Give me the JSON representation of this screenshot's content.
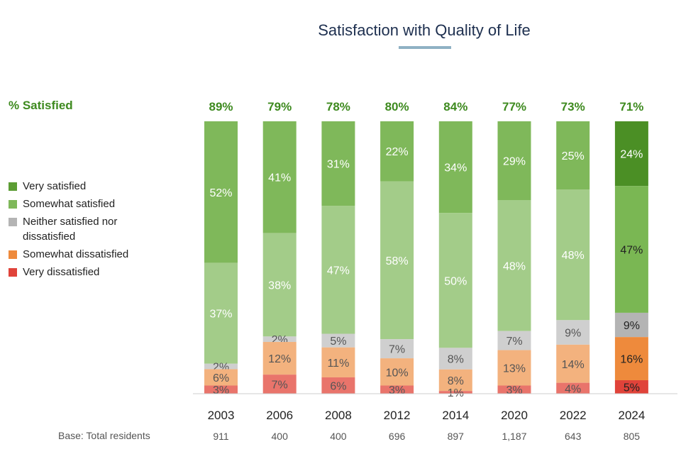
{
  "chart_data": {
    "type": "bar",
    "stacked": true,
    "title": "Satisfaction with Quality of Life",
    "categories": [
      "2003",
      "2006",
      "2008",
      "2012",
      "2014",
      "2020",
      "2022",
      "2024"
    ],
    "satisfied_label": "% Satisfied",
    "satisfied_totals": [
      "89%",
      "79%",
      "78%",
      "80%",
      "84%",
      "77%",
      "73%",
      "71%"
    ],
    "base_label": "Base: Total residents",
    "base_counts": [
      "911",
      "400",
      "400",
      "696",
      "897",
      "1,187",
      "643",
      "805"
    ],
    "series": [
      {
        "name": "Very satisfied",
        "values": [
          52,
          41,
          31,
          22,
          34,
          29,
          25,
          24
        ]
      },
      {
        "name": "Somewhat satisfied",
        "values": [
          37,
          38,
          47,
          58,
          50,
          48,
          48,
          47
        ]
      },
      {
        "name": "Neither satisfied nor dissatisfied",
        "values": [
          2,
          2,
          5,
          7,
          8,
          7,
          9,
          9
        ]
      },
      {
        "name": "Somewhat dissatisfied",
        "values": [
          6,
          12,
          11,
          10,
          8,
          13,
          14,
          16
        ]
      },
      {
        "name": "Very dissatisfied",
        "values": [
          3,
          7,
          6,
          3,
          1,
          3,
          4,
          5
        ]
      }
    ],
    "legend": [
      {
        "label": "Very satisfied",
        "color": "#5c9d34"
      },
      {
        "label": "Somewhat satisfied",
        "color": "#7fb85a"
      },
      {
        "label": "Neither satisfied nor dissatisfied",
        "color": "#b4b4b4"
      },
      {
        "label": "Somewhat dissatisfied",
        "color": "#ee8a3c"
      },
      {
        "label": "Very dissatisfied",
        "color": "#e0433a"
      }
    ],
    "colors": {
      "muted": [
        "#7fb85a",
        "#a3cc89",
        "#cfcfcf",
        "#f3b27e",
        "#e9746b"
      ],
      "highlight": [
        "#4b8f25",
        "#7ab753",
        "#b4b4b4",
        "#ee8a3c",
        "#e0433a"
      ],
      "satisfied_text": "#3e8a1f"
    },
    "highlight_category": "2024",
    "legend_position": "left",
    "grid": false
  }
}
